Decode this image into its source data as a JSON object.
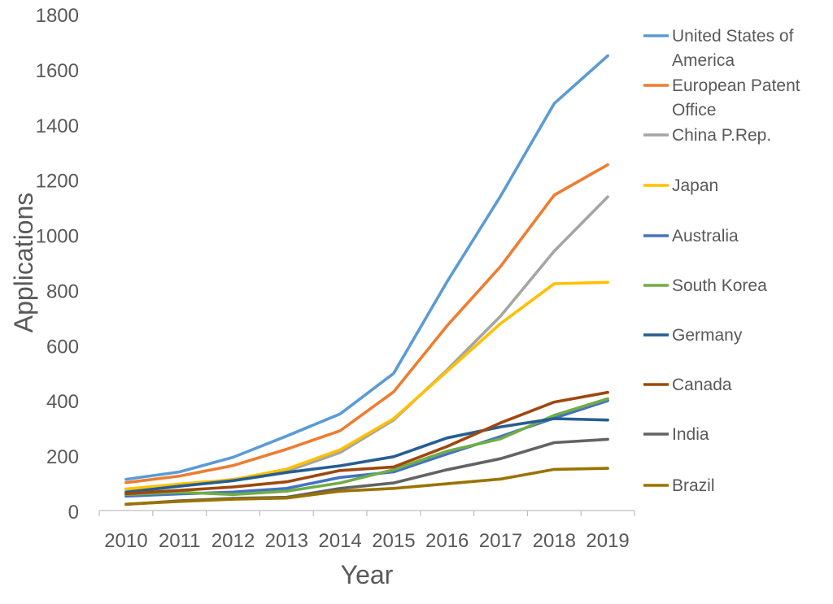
{
  "chart_data": {
    "type": "line",
    "title": "",
    "xlabel": "Year",
    "ylabel": "Applications",
    "ylim": [
      0,
      1800
    ],
    "yticks": [
      0,
      200,
      400,
      600,
      800,
      1000,
      1200,
      1400,
      1600,
      1800
    ],
    "grid": false,
    "legend_position": "right",
    "categories": [
      "2010",
      "2011",
      "2012",
      "2013",
      "2014",
      "2015",
      "2016",
      "2017",
      "2018",
      "2019"
    ],
    "series": [
      {
        "name": "United States of America",
        "color": "#5B9BD5",
        "values": [
          113,
          140,
          193,
          270,
          350,
          497,
          830,
          1140,
          1475,
          1648
        ]
      },
      {
        "name": "European Patent Office",
        "color": "#ED7D31",
        "values": [
          101,
          125,
          163,
          222,
          289,
          430,
          670,
          885,
          1143,
          1253
        ]
      },
      {
        "name": "China P.Rep.",
        "color": "#A5A5A5",
        "values": [
          76,
          88,
          113,
          142,
          210,
          328,
          510,
          705,
          940,
          1137
        ]
      },
      {
        "name": "Japan",
        "color": "#FFC000",
        "values": [
          78,
          96,
          112,
          150,
          220,
          333,
          505,
          678,
          822,
          827
        ]
      },
      {
        "name": "Australia",
        "color": "#4472C4",
        "values": [
          52,
          60,
          67,
          80,
          120,
          140,
          205,
          268,
          335,
          398
        ]
      },
      {
        "name": "South Korea",
        "color": "#70AD47",
        "values": [
          58,
          66,
          58,
          70,
          100,
          148,
          215,
          260,
          345,
          405
        ]
      },
      {
        "name": "Germany",
        "color": "#255E91",
        "values": [
          66,
          88,
          108,
          138,
          162,
          195,
          263,
          303,
          333,
          328
        ]
      },
      {
        "name": "Canada",
        "color": "#9E480E",
        "values": [
          61,
          73,
          85,
          104,
          145,
          158,
          232,
          318,
          393,
          428
        ]
      },
      {
        "name": "India",
        "color": "#636363",
        "values": [
          22,
          35,
          44,
          48,
          80,
          100,
          148,
          188,
          246,
          258
        ]
      },
      {
        "name": "Brazil",
        "color": "#997300",
        "values": [
          23,
          33,
          41,
          45,
          70,
          80,
          97,
          114,
          149,
          153
        ]
      }
    ]
  }
}
